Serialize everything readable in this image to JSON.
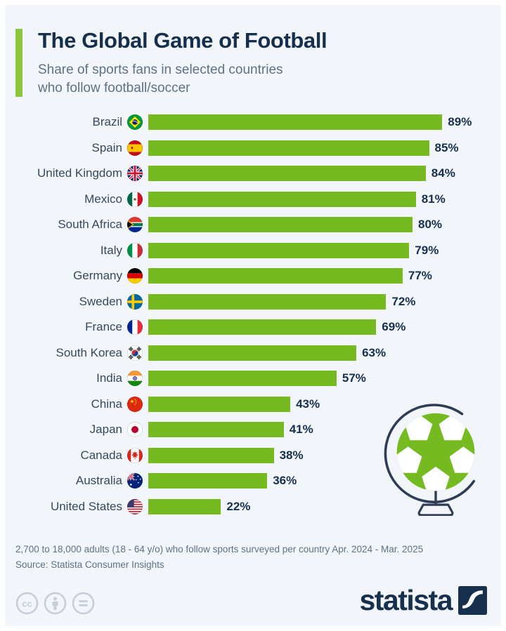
{
  "header": {
    "title": "The Global Game of Football",
    "subtitle_line1": "Share of sports fans in selected countries",
    "subtitle_line2": "who follow football/soccer"
  },
  "chart_data": {
    "type": "bar",
    "orientation": "horizontal",
    "unit": "%",
    "xlim": [
      0,
      100
    ],
    "title": "The Global Game of Football",
    "subtitle": "Share of sports fans in selected countries who follow football/soccer",
    "rows": [
      {
        "country": "Brazil",
        "flag": "brazil",
        "value": 89
      },
      {
        "country": "Spain",
        "flag": "spain",
        "value": 85
      },
      {
        "country": "United Kingdom",
        "flag": "united-kingdom",
        "value": 84
      },
      {
        "country": "Mexico",
        "flag": "mexico",
        "value": 81
      },
      {
        "country": "South Africa",
        "flag": "south-africa",
        "value": 80
      },
      {
        "country": "Italy",
        "flag": "italy",
        "value": 79
      },
      {
        "country": "Germany",
        "flag": "germany",
        "value": 77
      },
      {
        "country": "Sweden",
        "flag": "sweden",
        "value": 72
      },
      {
        "country": "France",
        "flag": "france",
        "value": 69
      },
      {
        "country": "South Korea",
        "flag": "south-korea",
        "value": 63
      },
      {
        "country": "India",
        "flag": "india",
        "value": 57
      },
      {
        "country": "China",
        "flag": "china",
        "value": 43
      },
      {
        "country": "Japan",
        "flag": "japan",
        "value": 41
      },
      {
        "country": "Canada",
        "flag": "canada",
        "value": 38
      },
      {
        "country": "Australia",
        "flag": "australia",
        "value": 36
      },
      {
        "country": "United States",
        "flag": "united-states",
        "value": 22
      }
    ]
  },
  "illustration": "globe-football",
  "footer": {
    "note": "2,700 to 18,000 adults (18 - 64 y/o) who follow sports surveyed per country Apr. 2024 - Mar. 2025",
    "source": "Source: Statista Consumer Insights",
    "license": [
      "cc",
      "attribution",
      "no-derivatives"
    ],
    "brand": "statista"
  },
  "colors": {
    "background": "#f2f6fa",
    "bar": "#76ba21",
    "accent": "#8cc63f",
    "title": "#15304e",
    "subtitle": "#5d7183",
    "label": "#36485c",
    "brand_navy": "#16304e",
    "license_gray": "#c7ced9"
  }
}
